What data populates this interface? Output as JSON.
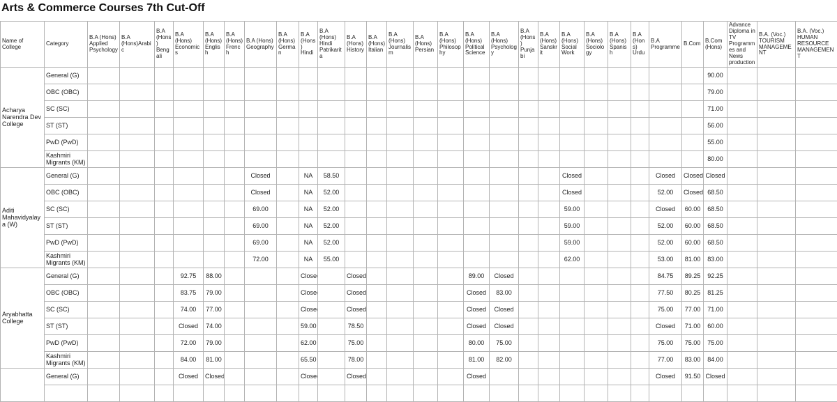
{
  "title": "Arts & Commerce Courses 7th Cut-Off",
  "columns": [
    "Name of College",
    "Category",
    "B.A (Hons) Applied Psychology",
    "B.A (Hons)Arabic",
    "B.A (Hons) Bengali",
    "B.A (Hons) Economics",
    "B.A (Hons) English",
    "B.A (Hons) French",
    "B.A (Hons) Geography",
    "B.A (Hons) German",
    "B.A (Hons) Hindi",
    "B.A (Hons) Hindi Patrikarita",
    "B.A (Hons) History",
    "B.A (Hons) Italian",
    "B.A (Hons) Journalism",
    "B.A (Hons) Persian",
    "B.A (Hons) Philosophy",
    "B.A (Hons) Political Science",
    "B.A (Hons) Psychology",
    "B.A (Hons) Punjabi",
    "B.A (Hons) Sanskrit",
    "B.A (Hons) Social Work",
    "B.A (Hons) Sociology",
    "B.A (Hons) Spanish",
    "B.A (Hons) Urdu",
    "B.A Programme",
    "B.Com",
    "B.Com (Hons)",
    "Advance Diploma in TV Programmes and News production",
    "B.A. (Voc.) TOURISM MANAGEMENT",
    "B.A. (Voc.) HUMAN RESOURCE MANAGEMENT"
  ],
  "colleges": [
    {
      "name": "Acharya Narendra Dev College",
      "rows": [
        {
          "category": "General (G)",
          "values": {
            "25": "90.00"
          }
        },
        {
          "category": "OBC (OBC)",
          "values": {
            "25": "79.00"
          }
        },
        {
          "category": "SC (SC)",
          "values": {
            "25": "71.00"
          }
        },
        {
          "category": "ST (ST)",
          "values": {
            "25": "56.00"
          }
        },
        {
          "category": "PwD (PwD)",
          "values": {
            "25": "55.00"
          }
        },
        {
          "category": "Kashmiri Migrants (KM)",
          "values": {
            "25": "80.00"
          }
        }
      ]
    },
    {
      "name": "Aditi Mahavidyalaya (W)",
      "rows": [
        {
          "category": "General (G)",
          "values": {
            "6": "Closed",
            "8": "NA",
            "9": "58.50",
            "19": "Closed",
            "23": "Closed",
            "24": "Closed",
            "25": "Closed"
          }
        },
        {
          "category": "OBC (OBC)",
          "values": {
            "6": "Closed",
            "8": "NA",
            "9": "52.00",
            "19": "Closed",
            "23": "52.00",
            "24": "Closed",
            "25": "68.50"
          }
        },
        {
          "category": "SC (SC)",
          "values": {
            "6": "69.00",
            "8": "NA",
            "9": "52.00",
            "19": "59.00",
            "23": "Closed",
            "24": "60.00",
            "25": "68.50"
          }
        },
        {
          "category": "ST (ST)",
          "values": {
            "6": "69.00",
            "8": "NA",
            "9": "52.00",
            "19": "59.00",
            "23": "52.00",
            "24": "60.00",
            "25": "68.50"
          }
        },
        {
          "category": "PwD (PwD)",
          "values": {
            "6": "69.00",
            "8": "NA",
            "9": "52.00",
            "19": "59.00",
            "23": "52.00",
            "24": "60.00",
            "25": "68.50"
          }
        },
        {
          "category": "Kashmiri Migrants (KM)",
          "values": {
            "6": "72.00",
            "8": "NA",
            "9": "55.00",
            "19": "62.00",
            "23": "53.00",
            "24": "81.00",
            "25": "83.00"
          }
        }
      ]
    },
    {
      "name": "Aryabhatta College",
      "rows": [
        {
          "category": "General (G)",
          "values": {
            "3": "92.75",
            "4": "88.00",
            "8": "Closed",
            "10": "Closed",
            "15": "89.00",
            "16": "Closed",
            "23": "84.75",
            "24": "89.25",
            "25": "92.25"
          }
        },
        {
          "category": "OBC (OBC)",
          "values": {
            "3": "83.75",
            "4": "79.00",
            "8": "Closed",
            "10": "Closed",
            "15": "Closed",
            "16": "83.00",
            "23": "77.50",
            "24": "80.25",
            "25": "81.25"
          }
        },
        {
          "category": "SC (SC)",
          "values": {
            "3": "74.00",
            "4": "77.00",
            "8": "Closed",
            "10": "Closed",
            "15": "Closed",
            "16": "Closed",
            "23": "75.00",
            "24": "77.00",
            "25": "71.00"
          }
        },
        {
          "category": "ST (ST)",
          "values": {
            "3": "Closed",
            "4": "74.00",
            "8": "59.00",
            "10": "78.50",
            "15": "Closed",
            "16": "Closed",
            "23": "Closed",
            "24": "71.00",
            "25": "60.00"
          }
        },
        {
          "category": "PwD (PwD)",
          "values": {
            "3": "72.00",
            "4": "79.00",
            "8": "62.00",
            "10": "75.00",
            "15": "80.00",
            "16": "75.00",
            "23": "75.00",
            "24": "75.00",
            "25": "75.00"
          }
        },
        {
          "category": "Kashmiri Migrants (KM)",
          "values": {
            "3": "84.00",
            "4": "81.00",
            "8": "65.50",
            "10": "78.00",
            "15": "81.00",
            "16": "82.00",
            "23": "77.00",
            "24": "83.00",
            "25": "84.00"
          }
        }
      ]
    },
    {
      "name": "",
      "rows": [
        {
          "category": "General (G)",
          "values": {
            "3": "Closed",
            "4": "Closed",
            "8": "Closed",
            "10": "Closed",
            "15": "Closed",
            "23": "Closed",
            "24": "91.50",
            "25": "Closed"
          }
        },
        {
          "category": "",
          "values": {}
        }
      ]
    }
  ]
}
